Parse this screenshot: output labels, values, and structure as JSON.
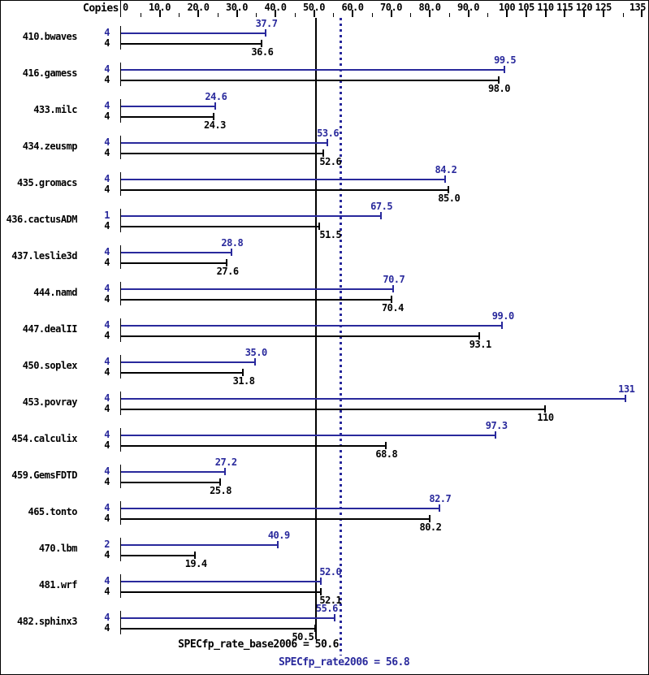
{
  "header": {
    "copies_label": "Copies"
  },
  "colors": {
    "peak_blue": "#29299c",
    "base_black": "#000000",
    "background": "#ffffff"
  },
  "chart_data": {
    "type": "bar",
    "orientation": "horizontal-paired",
    "title": "",
    "xlabel": "",
    "ylabel": "Copies",
    "xlim": [
      0,
      135
    ],
    "grid": false,
    "legend_position": "none",
    "axis": {
      "major_ticks": [
        {
          "value": 0,
          "label": "0"
        },
        {
          "value": 10,
          "label": "10.0"
        },
        {
          "value": 20,
          "label": "20.0"
        },
        {
          "value": 30,
          "label": "30.0"
        },
        {
          "value": 40,
          "label": "40.0"
        },
        {
          "value": 50,
          "label": "50.0"
        },
        {
          "value": 60,
          "label": "60.0"
        },
        {
          "value": 70,
          "label": "70.0"
        },
        {
          "value": 80,
          "label": "80.0"
        },
        {
          "value": 90,
          "label": "90.0"
        },
        {
          "value": 100,
          "label": "100"
        },
        {
          "value": 105,
          "label": "105"
        },
        {
          "value": 110,
          "label": "110"
        },
        {
          "value": 115,
          "label": "115"
        },
        {
          "value": 120,
          "label": "120"
        },
        {
          "value": 125,
          "label": "125"
        },
        {
          "value": 135,
          "label": "135"
        }
      ],
      "minor_ticks": [
        5,
        15,
        25,
        35,
        45,
        55,
        65,
        75,
        85,
        95,
        130
      ]
    },
    "series": [
      {
        "name": "peak",
        "color_key": "peak_blue"
      },
      {
        "name": "base",
        "color_key": "base_black"
      }
    ],
    "benchmarks": [
      {
        "name": "410.bwaves",
        "peak_copies": "4",
        "base_copies": "4",
        "peak": 37.7,
        "peak_label": "37.7",
        "base": 36.6,
        "base_label": "36.6"
      },
      {
        "name": "416.gamess",
        "peak_copies": "4",
        "base_copies": "4",
        "peak": 99.5,
        "peak_label": "99.5",
        "base": 98.0,
        "base_label": "98.0"
      },
      {
        "name": "433.milc",
        "peak_copies": "4",
        "base_copies": "4",
        "peak": 24.6,
        "peak_label": "24.6",
        "base": 24.3,
        "base_label": "24.3"
      },
      {
        "name": "434.zeusmp",
        "peak_copies": "4",
        "base_copies": "4",
        "peak": 53.6,
        "peak_label": "53.6",
        "base": 52.6,
        "base_label": "52.6"
      },
      {
        "name": "435.gromacs",
        "peak_copies": "4",
        "base_copies": "4",
        "peak": 84.2,
        "peak_label": "84.2",
        "base": 85.0,
        "base_label": "85.0"
      },
      {
        "name": "436.cactusADM",
        "peak_copies": "1",
        "base_copies": "4",
        "peak": 67.5,
        "peak_label": "67.5",
        "base": 51.5,
        "base_label": "51.5"
      },
      {
        "name": "437.leslie3d",
        "peak_copies": "4",
        "base_copies": "4",
        "peak": 28.8,
        "peak_label": "28.8",
        "base": 27.6,
        "base_label": "27.6"
      },
      {
        "name": "444.namd",
        "peak_copies": "4",
        "base_copies": "4",
        "peak": 70.7,
        "peak_label": "70.7",
        "base": 70.4,
        "base_label": "70.4"
      },
      {
        "name": "447.dealII",
        "peak_copies": "4",
        "base_copies": "4",
        "peak": 99.0,
        "peak_label": "99.0",
        "base": 93.1,
        "base_label": "93.1"
      },
      {
        "name": "450.soplex",
        "peak_copies": "4",
        "base_copies": "4",
        "peak": 35.0,
        "peak_label": "35.0",
        "base": 31.8,
        "base_label": "31.8"
      },
      {
        "name": "453.povray",
        "peak_copies": "4",
        "base_copies": "4",
        "peak": 131,
        "peak_label": "131",
        "base": 110,
        "base_label": "110"
      },
      {
        "name": "454.calculix",
        "peak_copies": "4",
        "base_copies": "4",
        "peak": 97.3,
        "peak_label": "97.3",
        "base": 68.8,
        "base_label": "68.8"
      },
      {
        "name": "459.GemsFDTD",
        "peak_copies": "4",
        "base_copies": "4",
        "peak": 27.2,
        "peak_label": "27.2",
        "base": 25.8,
        "base_label": "25.8"
      },
      {
        "name": "465.tonto",
        "peak_copies": "4",
        "base_copies": "4",
        "peak": 82.7,
        "peak_label": "82.7",
        "base": 80.2,
        "base_label": "80.2"
      },
      {
        "name": "470.lbm",
        "peak_copies": "2",
        "base_copies": "4",
        "peak": 40.9,
        "peak_label": "40.9",
        "base": 19.4,
        "base_label": "19.4"
      },
      {
        "name": "481.wrf",
        "peak_copies": "4",
        "base_copies": "4",
        "peak": 52.0,
        "peak_label": "52.0",
        "base": 52.1,
        "base_label": "52.1"
      },
      {
        "name": "482.sphinx3",
        "peak_copies": "4",
        "base_copies": "4",
        "peak": 55.6,
        "peak_label": "55.6",
        "base": 50.5,
        "base_label": "50.5"
      }
    ],
    "reference_lines": [
      {
        "kind": "base",
        "value": 50.6,
        "style": "solid"
      },
      {
        "kind": "peak",
        "value": 56.8,
        "style": "dotted"
      }
    ],
    "summary": {
      "base": {
        "text": "SPECfp_rate_base2006 = 50.6",
        "value": 50.6
      },
      "peak": {
        "text": "SPECfp_rate2006 = 56.8",
        "value": 56.8
      }
    }
  }
}
